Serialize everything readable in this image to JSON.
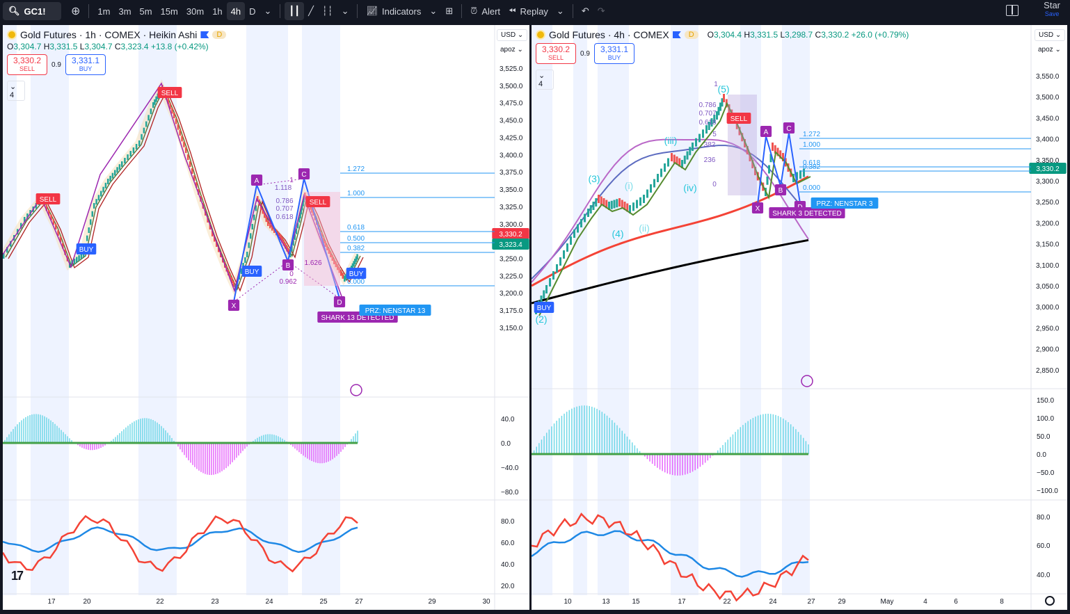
{
  "toolbar": {
    "symbol": "GC1!",
    "timeframes": [
      "1m",
      "3m",
      "5m",
      "15m",
      "30m",
      "1h",
      "4h",
      "D"
    ],
    "active_timeframe": "4h",
    "indicators": "Indicators",
    "alert": "Alert",
    "replay": "Replay",
    "star": "Star",
    "save": "Save"
  },
  "left": {
    "title": "Gold Futures · 1h · COMEX · Heikin Ashi",
    "d_badge": "D",
    "ohlc_o": "3,304.7",
    "ohlc_h": "3,331.5",
    "ohlc_l": "3,304.7",
    "ohlc_c": "3,323.4",
    "change": "+13.8 (+0.42%)",
    "sell_price": "3,330.2",
    "sell_label": "SELL",
    "spread": "0.9",
    "buy_price": "3,331.1",
    "buy_label": "BUY",
    "indicator_count": "4",
    "currency": "USD",
    "scale_mode": "apoz",
    "price_ticks": [
      "3,525.0",
      "3,500.0",
      "3,475.0",
      "3,450.0",
      "3,425.0",
      "3,400.0",
      "3,375.0",
      "3,350.0",
      "3,325.0",
      "3,300.0",
      "3,275.0",
      "3,250.0",
      "3,225.0",
      "3,200.0",
      "3,175.0",
      "3,150.0"
    ],
    "price_tag_red": "3,330.2",
    "price_tag_green": "3,323.4",
    "macd_ticks": [
      "40.0",
      "0.0",
      "−40.0",
      "−80.0"
    ],
    "rsi_ticks": [
      "80.0",
      "60.0",
      "40.0",
      "20.0"
    ],
    "time_ticks": [
      "17",
      "20",
      "22",
      "23",
      "24",
      "25",
      "27",
      "29",
      "30"
    ],
    "fib_labels": [
      "1.272",
      "1.000",
      "0.618",
      "0.500",
      "0.382",
      "0.000"
    ],
    "pattern_points": [
      "X",
      "A",
      "B",
      "C",
      "D"
    ],
    "ratios": [
      "1.118",
      "0.786",
      "0.707",
      "0.618",
      "0.962",
      "1.626",
      "1",
      "0"
    ],
    "signals": [
      "SELL",
      "BUY",
      "SELL",
      "BUY",
      "SELL",
      "BUY"
    ],
    "shark_label": "SHARK 13 DETECTED",
    "prz_label": "PRZ: NENSTAR 13"
  },
  "right": {
    "title": "Gold Futures · 4h · COMEX",
    "d_badge": "D",
    "ohlc_o": "3,304.4",
    "ohlc_h": "3,331.5",
    "ohlc_l": "3,298.7",
    "ohlc_c": "3,330.2",
    "change": "+26.0 (+0.79%)",
    "sell_price": "3,330.2",
    "sell_label": "SELL",
    "spread": "0.9",
    "buy_price": "3,331.1",
    "buy_label": "BUY",
    "indicator_count": "4",
    "currency": "USD",
    "scale_mode": "apoz",
    "price_ticks": [
      "3,550.0",
      "3,500.0",
      "3,450.0",
      "3,400.0",
      "3,350.0",
      "3,300.0",
      "3,250.0",
      "3,200.0",
      "3,150.0",
      "3,100.0",
      "3,050.0",
      "3,000.0",
      "2,950.0",
      "2,900.0",
      "2,850.0"
    ],
    "price_tag": "3,330.2",
    "macd_ticks": [
      "150.0",
      "100.0",
      "50.0",
      "0.0",
      "−50.0",
      "−100.0"
    ],
    "rsi_ticks": [
      "80.0",
      "60.0",
      "40.0"
    ],
    "time_ticks": [
      "10",
      "13",
      "15",
      "17",
      "22",
      "24",
      "27",
      "29",
      "May",
      "4",
      "6",
      "8"
    ],
    "fib_labels": [
      "1.272",
      "1.000",
      "0.618",
      "0.382",
      "0.000"
    ],
    "fib_top_labels": [
      "1",
      "0.786",
      "0.707",
      "0.618",
      "5",
      "382",
      "236",
      "0"
    ],
    "pattern_points": [
      "X",
      "A",
      "B",
      "C",
      "D"
    ],
    "waves": [
      "(2)",
      "(3)",
      "(4)",
      "(5)",
      "(i)",
      "(ii)",
      "(iii)",
      "(iv)"
    ],
    "signals": [
      "BUY",
      "SELL"
    ],
    "shark_label": "SHARK 3 DETECTED",
    "prz_label": "PRZ: NENSTAR 3"
  }
}
